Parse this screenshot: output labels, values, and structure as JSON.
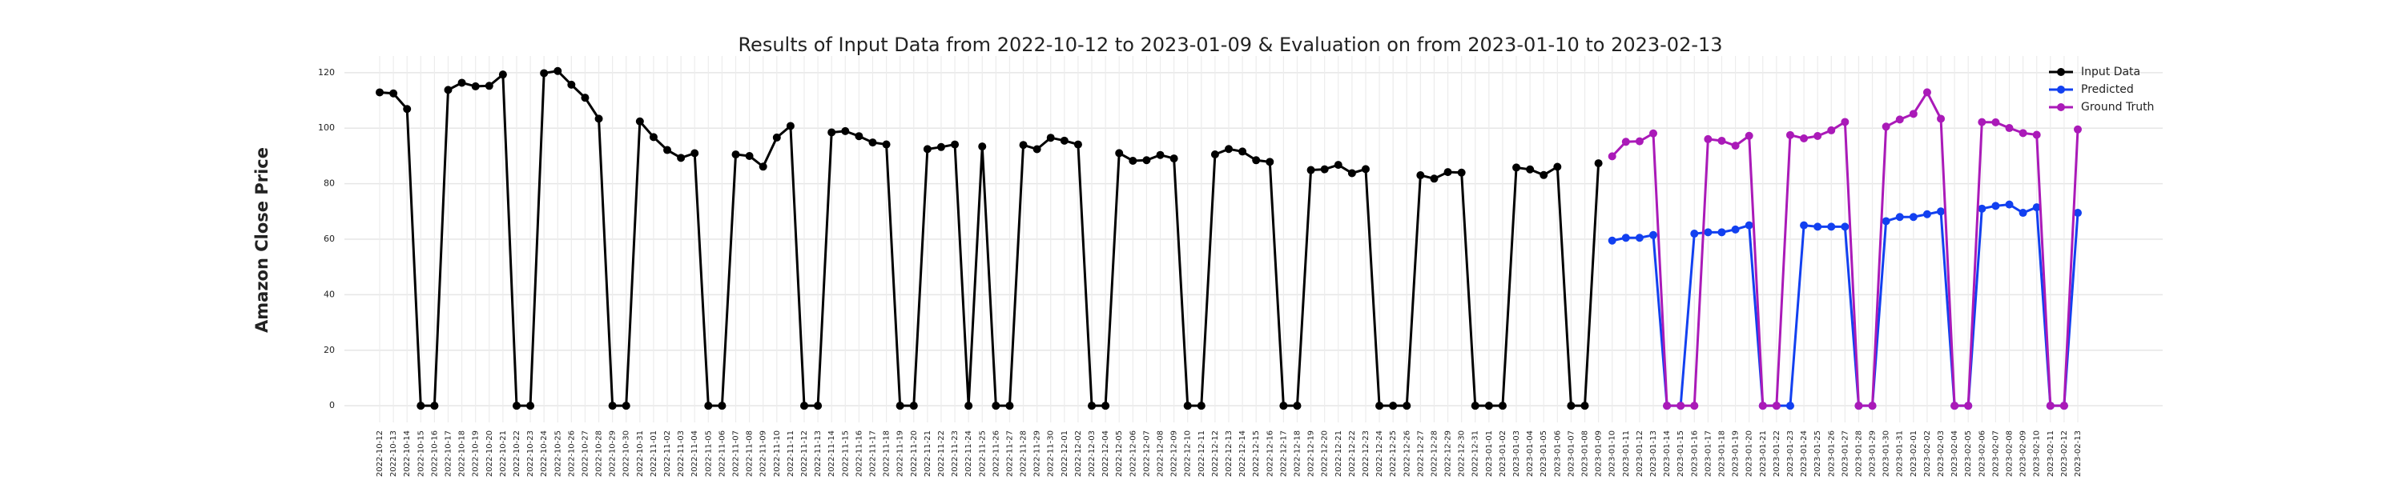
{
  "chart_data": {
    "type": "line",
    "title": "Results of Input Data from 2022-10-12 to 2023-01-09 & Evaluation on from 2023-01-10 to 2023-02-13",
    "y_label": "Amazon Close Price",
    "categories": [
      "2022-10-12",
      "2022-10-13",
      "2022-10-14",
      "2022-10-15",
      "2022-10-16",
      "2022-10-17",
      "2022-10-18",
      "2022-10-19",
      "2022-10-20",
      "2022-10-21",
      "2022-10-22",
      "2022-10-23",
      "2022-10-24",
      "2022-10-25",
      "2022-10-26",
      "2022-10-27",
      "2022-10-28",
      "2022-10-29",
      "2022-10-30",
      "2022-10-31",
      "2022-11-01",
      "2022-11-02",
      "2022-11-03",
      "2022-11-04",
      "2022-11-05",
      "2022-11-06",
      "2022-11-07",
      "2022-11-08",
      "2022-11-09",
      "2022-11-10",
      "2022-11-11",
      "2022-11-12",
      "2022-11-13",
      "2022-11-14",
      "2022-11-15",
      "2022-11-16",
      "2022-11-17",
      "2022-11-18",
      "2022-11-19",
      "2022-11-20",
      "2022-11-21",
      "2022-11-22",
      "2022-11-23",
      "2022-11-24",
      "2022-11-25",
      "2022-11-26",
      "2022-11-27",
      "2022-11-28",
      "2022-11-29",
      "2022-11-30",
      "2022-12-01",
      "2022-12-02",
      "2022-12-03",
      "2022-12-04",
      "2022-12-05",
      "2022-12-06",
      "2022-12-07",
      "2022-12-08",
      "2022-12-09",
      "2022-12-10",
      "2022-12-11",
      "2022-12-12",
      "2022-12-13",
      "2022-12-14",
      "2022-12-15",
      "2022-12-16",
      "2022-12-17",
      "2022-12-18",
      "2022-12-19",
      "2022-12-20",
      "2022-12-21",
      "2022-12-22",
      "2022-12-23",
      "2022-12-24",
      "2022-12-25",
      "2022-12-26",
      "2022-12-27",
      "2022-12-28",
      "2022-12-29",
      "2022-12-30",
      "2022-12-31",
      "2023-01-01",
      "2023-01-02",
      "2023-01-03",
      "2023-01-04",
      "2023-01-05",
      "2023-01-06",
      "2023-01-07",
      "2023-01-08",
      "2023-01-09",
      "2023-01-10",
      "2023-01-11",
      "2023-01-12",
      "2023-01-13",
      "2023-01-14",
      "2023-01-15",
      "2023-01-16",
      "2023-01-17",
      "2023-01-18",
      "2023-01-19",
      "2023-01-20",
      "2023-01-21",
      "2023-01-22",
      "2023-01-23",
      "2023-01-24",
      "2023-01-25",
      "2023-01-26",
      "2023-01-27",
      "2023-01-28",
      "2023-01-29",
      "2023-01-30",
      "2023-01-31",
      "2023-02-01",
      "2023-02-02",
      "2023-02-03",
      "2023-02-04",
      "2023-02-05",
      "2023-02-06",
      "2023-02-07",
      "2023-02-08",
      "2023-02-09",
      "2023-02-10",
      "2023-02-11",
      "2023-02-12",
      "2023-02-13"
    ],
    "series": [
      {
        "name": "Input Data",
        "color": "#000000",
        "values": [
          112.9,
          112.53,
          106.9,
          0,
          0,
          113.79,
          116.36,
          115.07,
          115.25,
          119.32,
          0,
          0,
          119.82,
          120.6,
          115.66,
          110.96,
          103.41,
          0,
          0,
          102.44,
          96.79,
          92.12,
          89.3,
          90.98,
          0,
          0,
          90.53,
          89.98,
          86.14,
          96.63,
          100.79,
          0,
          0,
          98.49,
          98.94,
          97.12,
          94.85,
          94.14,
          0,
          0,
          92.46,
          93.2,
          94.13,
          0,
          93.41,
          0,
          0,
          93.95,
          92.42,
          96.54,
          95.5,
          94.13,
          0,
          0,
          91.01,
          88.25,
          88.46,
          90.35,
          89.09,
          0,
          0,
          90.55,
          92.49,
          91.58,
          88.45,
          87.86,
          0,
          0,
          84.92,
          85.19,
          86.77,
          83.79,
          85.25,
          0,
          0,
          0,
          83.04,
          81.82,
          84.18,
          84.0,
          0,
          0,
          0,
          85.82,
          85.14,
          83.12,
          86.08,
          0,
          0,
          87.36,
          null,
          null,
          null,
          null,
          null,
          null,
          null,
          null,
          null,
          null,
          null,
          null,
          null,
          null,
          null,
          null,
          null,
          null,
          null,
          null,
          null,
          null,
          null,
          null,
          null,
          null,
          null,
          null,
          null,
          null,
          null,
          null,
          null,
          null,
          null
        ]
      },
      {
        "name": "Predicted",
        "color": "#1240f0",
        "values": [
          null,
          null,
          null,
          null,
          null,
          null,
          null,
          null,
          null,
          null,
          null,
          null,
          null,
          null,
          null,
          null,
          null,
          null,
          null,
          null,
          null,
          null,
          null,
          null,
          null,
          null,
          null,
          null,
          null,
          null,
          null,
          null,
          null,
          null,
          null,
          null,
          null,
          null,
          null,
          null,
          null,
          null,
          null,
          null,
          null,
          null,
          null,
          null,
          null,
          null,
          null,
          null,
          null,
          null,
          null,
          null,
          null,
          null,
          null,
          null,
          null,
          null,
          null,
          null,
          null,
          null,
          null,
          null,
          null,
          null,
          null,
          null,
          null,
          null,
          null,
          null,
          null,
          null,
          null,
          null,
          null,
          null,
          null,
          null,
          null,
          null,
          null,
          null,
          null,
          null,
          59.5,
          60.5,
          60.5,
          61.5,
          0,
          0,
          62,
          62.5,
          62.5,
          63.5,
          65,
          0,
          0,
          0,
          65,
          64.5,
          64.5,
          64.5,
          0,
          0,
          66.5,
          68,
          68,
          69,
          70,
          0,
          0,
          71,
          72,
          72.5,
          69.5,
          71.5,
          0,
          0,
          69.5
        ]
      },
      {
        "name": "Ground Truth",
        "color": "#aa1ab8",
        "values": [
          null,
          null,
          null,
          null,
          null,
          null,
          null,
          null,
          null,
          null,
          null,
          null,
          null,
          null,
          null,
          null,
          null,
          null,
          null,
          null,
          null,
          null,
          null,
          null,
          null,
          null,
          null,
          null,
          null,
          null,
          null,
          null,
          null,
          null,
          null,
          null,
          null,
          null,
          null,
          null,
          null,
          null,
          null,
          null,
          null,
          null,
          null,
          null,
          null,
          null,
          null,
          null,
          null,
          null,
          null,
          null,
          null,
          null,
          null,
          null,
          null,
          null,
          null,
          null,
          null,
          null,
          null,
          null,
          null,
          null,
          null,
          null,
          null,
          null,
          null,
          null,
          null,
          null,
          null,
          null,
          null,
          null,
          null,
          null,
          null,
          null,
          null,
          null,
          null,
          null,
          89.87,
          95.09,
          95.27,
          98.12,
          0,
          0,
          0,
          96.05,
          95.46,
          93.68,
          97.25,
          0,
          0,
          97.52,
          96.32,
          97.18,
          99.22,
          102.24,
          0,
          0,
          100.55,
          103.13,
          105.15,
          112.91,
          103.39,
          0,
          0,
          102.18,
          102.11,
          100.05,
          98.24,
          97.61,
          0,
          0,
          99.54
        ]
      }
    ],
    "ylim": [
      -6,
      126
    ],
    "yticks": [
      0,
      20,
      40,
      60,
      80,
      100,
      120
    ],
    "grid": true,
    "legend": "upper right"
  }
}
